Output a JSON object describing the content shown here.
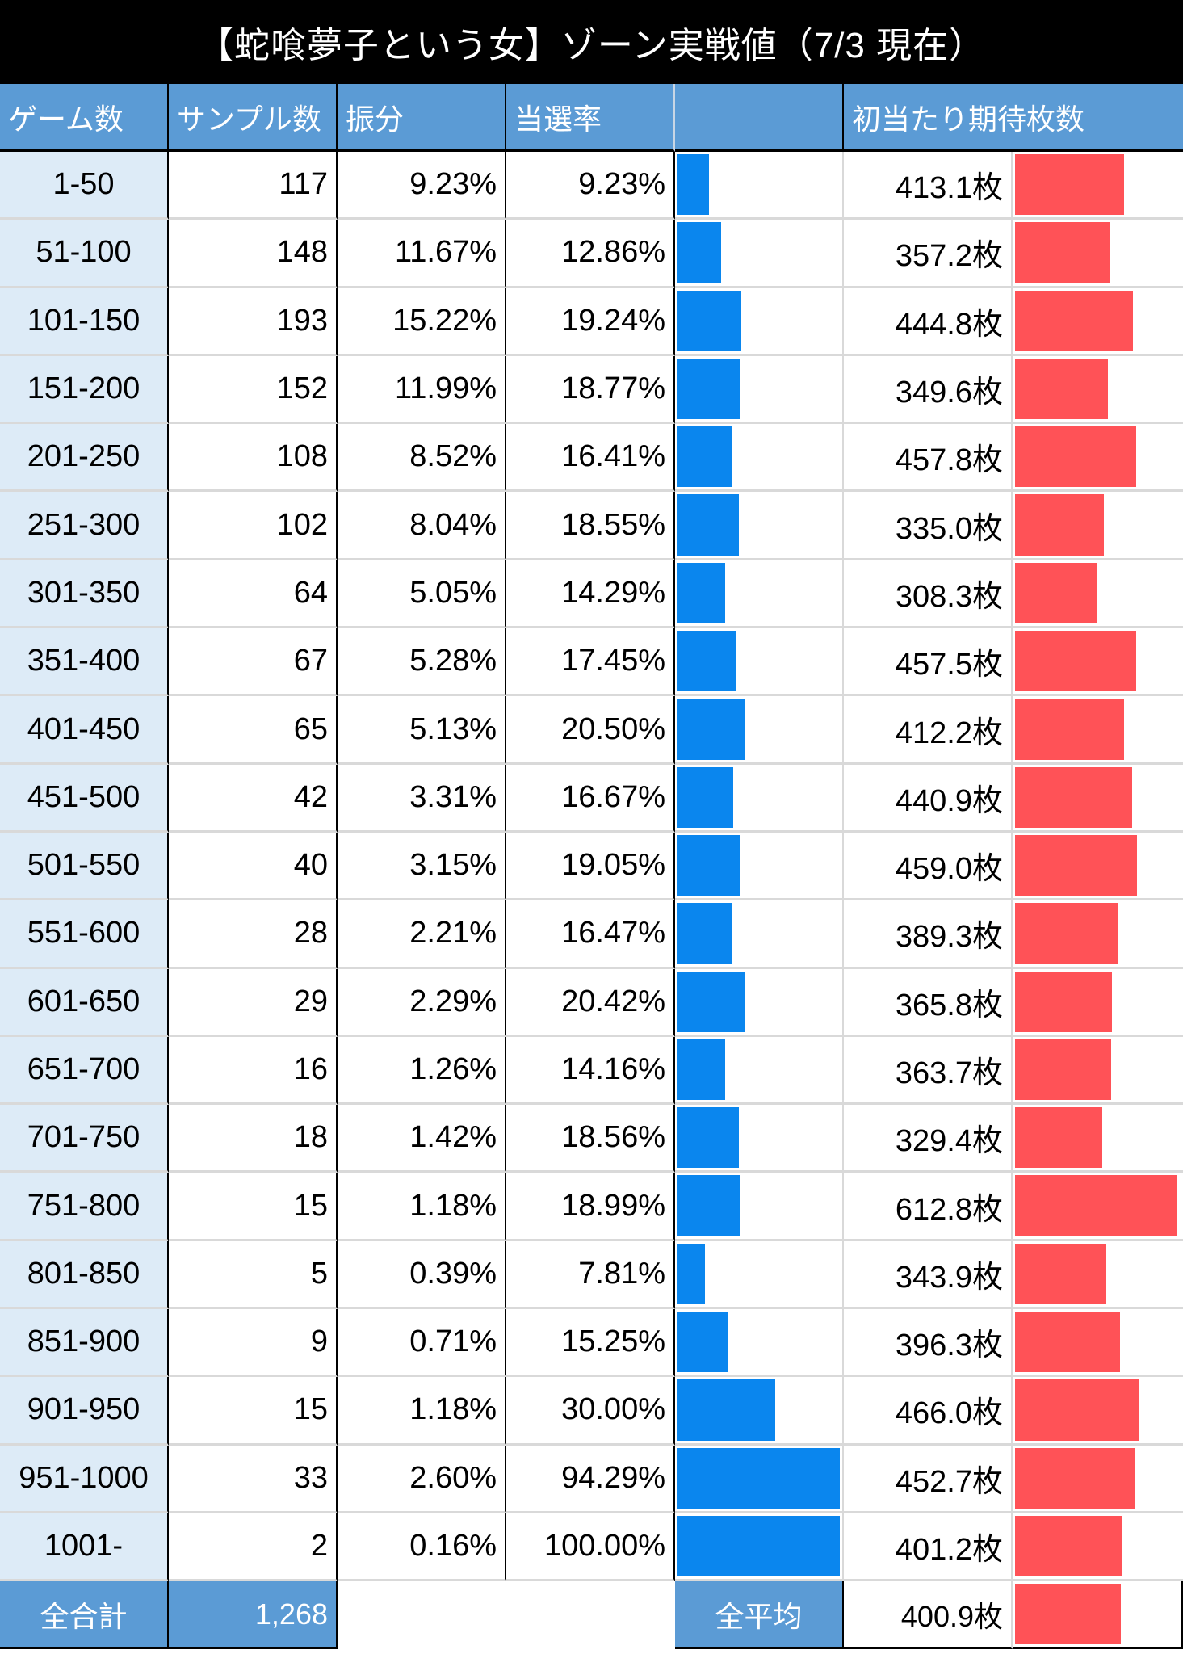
{
  "title": "【蛇喰夢子という女】ゾーン実戦値（7/3 現在）",
  "headers": [
    "ゲーム数",
    "サンプル数",
    "振分",
    "当選率",
    "",
    "初当たり期待枚数"
  ],
  "colors": {
    "header": "#5b9bd5",
    "rate_bar": "#0a86ee",
    "payout_bar": "#ff5257",
    "zone_col": "#ddebf7"
  },
  "rows": [
    {
      "zone": "1-50",
      "samples": "117",
      "share": "9.23%",
      "rate": "9.23%",
      "rate_value": 9.23,
      "payout": "413.1枚",
      "payout_value": 413.1
    },
    {
      "zone": "51-100",
      "samples": "148",
      "share": "11.67%",
      "rate": "12.86%",
      "rate_value": 12.86,
      "payout": "357.2枚",
      "payout_value": 357.2
    },
    {
      "zone": "101-150",
      "samples": "193",
      "share": "15.22%",
      "rate": "19.24%",
      "rate_value": 19.24,
      "payout": "444.8枚",
      "payout_value": 444.8
    },
    {
      "zone": "151-200",
      "samples": "152",
      "share": "11.99%",
      "rate": "18.77%",
      "rate_value": 18.77,
      "payout": "349.6枚",
      "payout_value": 349.6
    },
    {
      "zone": "201-250",
      "samples": "108",
      "share": "8.52%",
      "rate": "16.41%",
      "rate_value": 16.41,
      "payout": "457.8枚",
      "payout_value": 457.8
    },
    {
      "zone": "251-300",
      "samples": "102",
      "share": "8.04%",
      "rate": "18.55%",
      "rate_value": 18.55,
      "payout": "335.0枚",
      "payout_value": 335.0
    },
    {
      "zone": "301-350",
      "samples": "64",
      "share": "5.05%",
      "rate": "14.29%",
      "rate_value": 14.29,
      "payout": "308.3枚",
      "payout_value": 308.3
    },
    {
      "zone": "351-400",
      "samples": "67",
      "share": "5.28%",
      "rate": "17.45%",
      "rate_value": 17.45,
      "payout": "457.5枚",
      "payout_value": 457.5
    },
    {
      "zone": "401-450",
      "samples": "65",
      "share": "5.13%",
      "rate": "20.50%",
      "rate_value": 20.5,
      "payout": "412.2枚",
      "payout_value": 412.2
    },
    {
      "zone": "451-500",
      "samples": "42",
      "share": "3.31%",
      "rate": "16.67%",
      "rate_value": 16.67,
      "payout": "440.9枚",
      "payout_value": 440.9
    },
    {
      "zone": "501-550",
      "samples": "40",
      "share": "3.15%",
      "rate": "19.05%",
      "rate_value": 19.05,
      "payout": "459.0枚",
      "payout_value": 459.0
    },
    {
      "zone": "551-600",
      "samples": "28",
      "share": "2.21%",
      "rate": "16.47%",
      "rate_value": 16.47,
      "payout": "389.3枚",
      "payout_value": 389.3
    },
    {
      "zone": "601-650",
      "samples": "29",
      "share": "2.29%",
      "rate": "20.42%",
      "rate_value": 20.42,
      "payout": "365.8枚",
      "payout_value": 365.8
    },
    {
      "zone": "651-700",
      "samples": "16",
      "share": "1.26%",
      "rate": "14.16%",
      "rate_value": 14.16,
      "payout": "363.7枚",
      "payout_value": 363.7
    },
    {
      "zone": "701-750",
      "samples": "18",
      "share": "1.42%",
      "rate": "18.56%",
      "rate_value": 18.56,
      "payout": "329.4枚",
      "payout_value": 329.4
    },
    {
      "zone": "751-800",
      "samples": "15",
      "share": "1.18%",
      "rate": "18.99%",
      "rate_value": 18.99,
      "payout": "612.8枚",
      "payout_value": 612.8
    },
    {
      "zone": "801-850",
      "samples": "5",
      "share": "0.39%",
      "rate": "7.81%",
      "rate_value": 7.81,
      "payout": "343.9枚",
      "payout_value": 343.9
    },
    {
      "zone": "851-900",
      "samples": "9",
      "share": "0.71%",
      "rate": "15.25%",
      "rate_value": 15.25,
      "payout": "396.3枚",
      "payout_value": 396.3
    },
    {
      "zone": "901-950",
      "samples": "15",
      "share": "1.18%",
      "rate": "30.00%",
      "rate_value": 30.0,
      "payout": "466.0枚",
      "payout_value": 466.0
    },
    {
      "zone": "951-1000",
      "samples": "33",
      "share": "2.60%",
      "rate": "94.29%",
      "rate_value": 94.29,
      "payout": "452.7枚",
      "payout_value": 452.7
    },
    {
      "zone": "1001-",
      "samples": "2",
      "share": "0.16%",
      "rate": "100.00%",
      "rate_value": 100.0,
      "payout": "401.2枚",
      "payout_value": 401.2
    }
  ],
  "footer": {
    "total_label": "全合計",
    "total_value": "1,268",
    "avg_label": "全平均",
    "avg_payout": "400.9枚",
    "avg_payout_value": 400.9
  }
}
